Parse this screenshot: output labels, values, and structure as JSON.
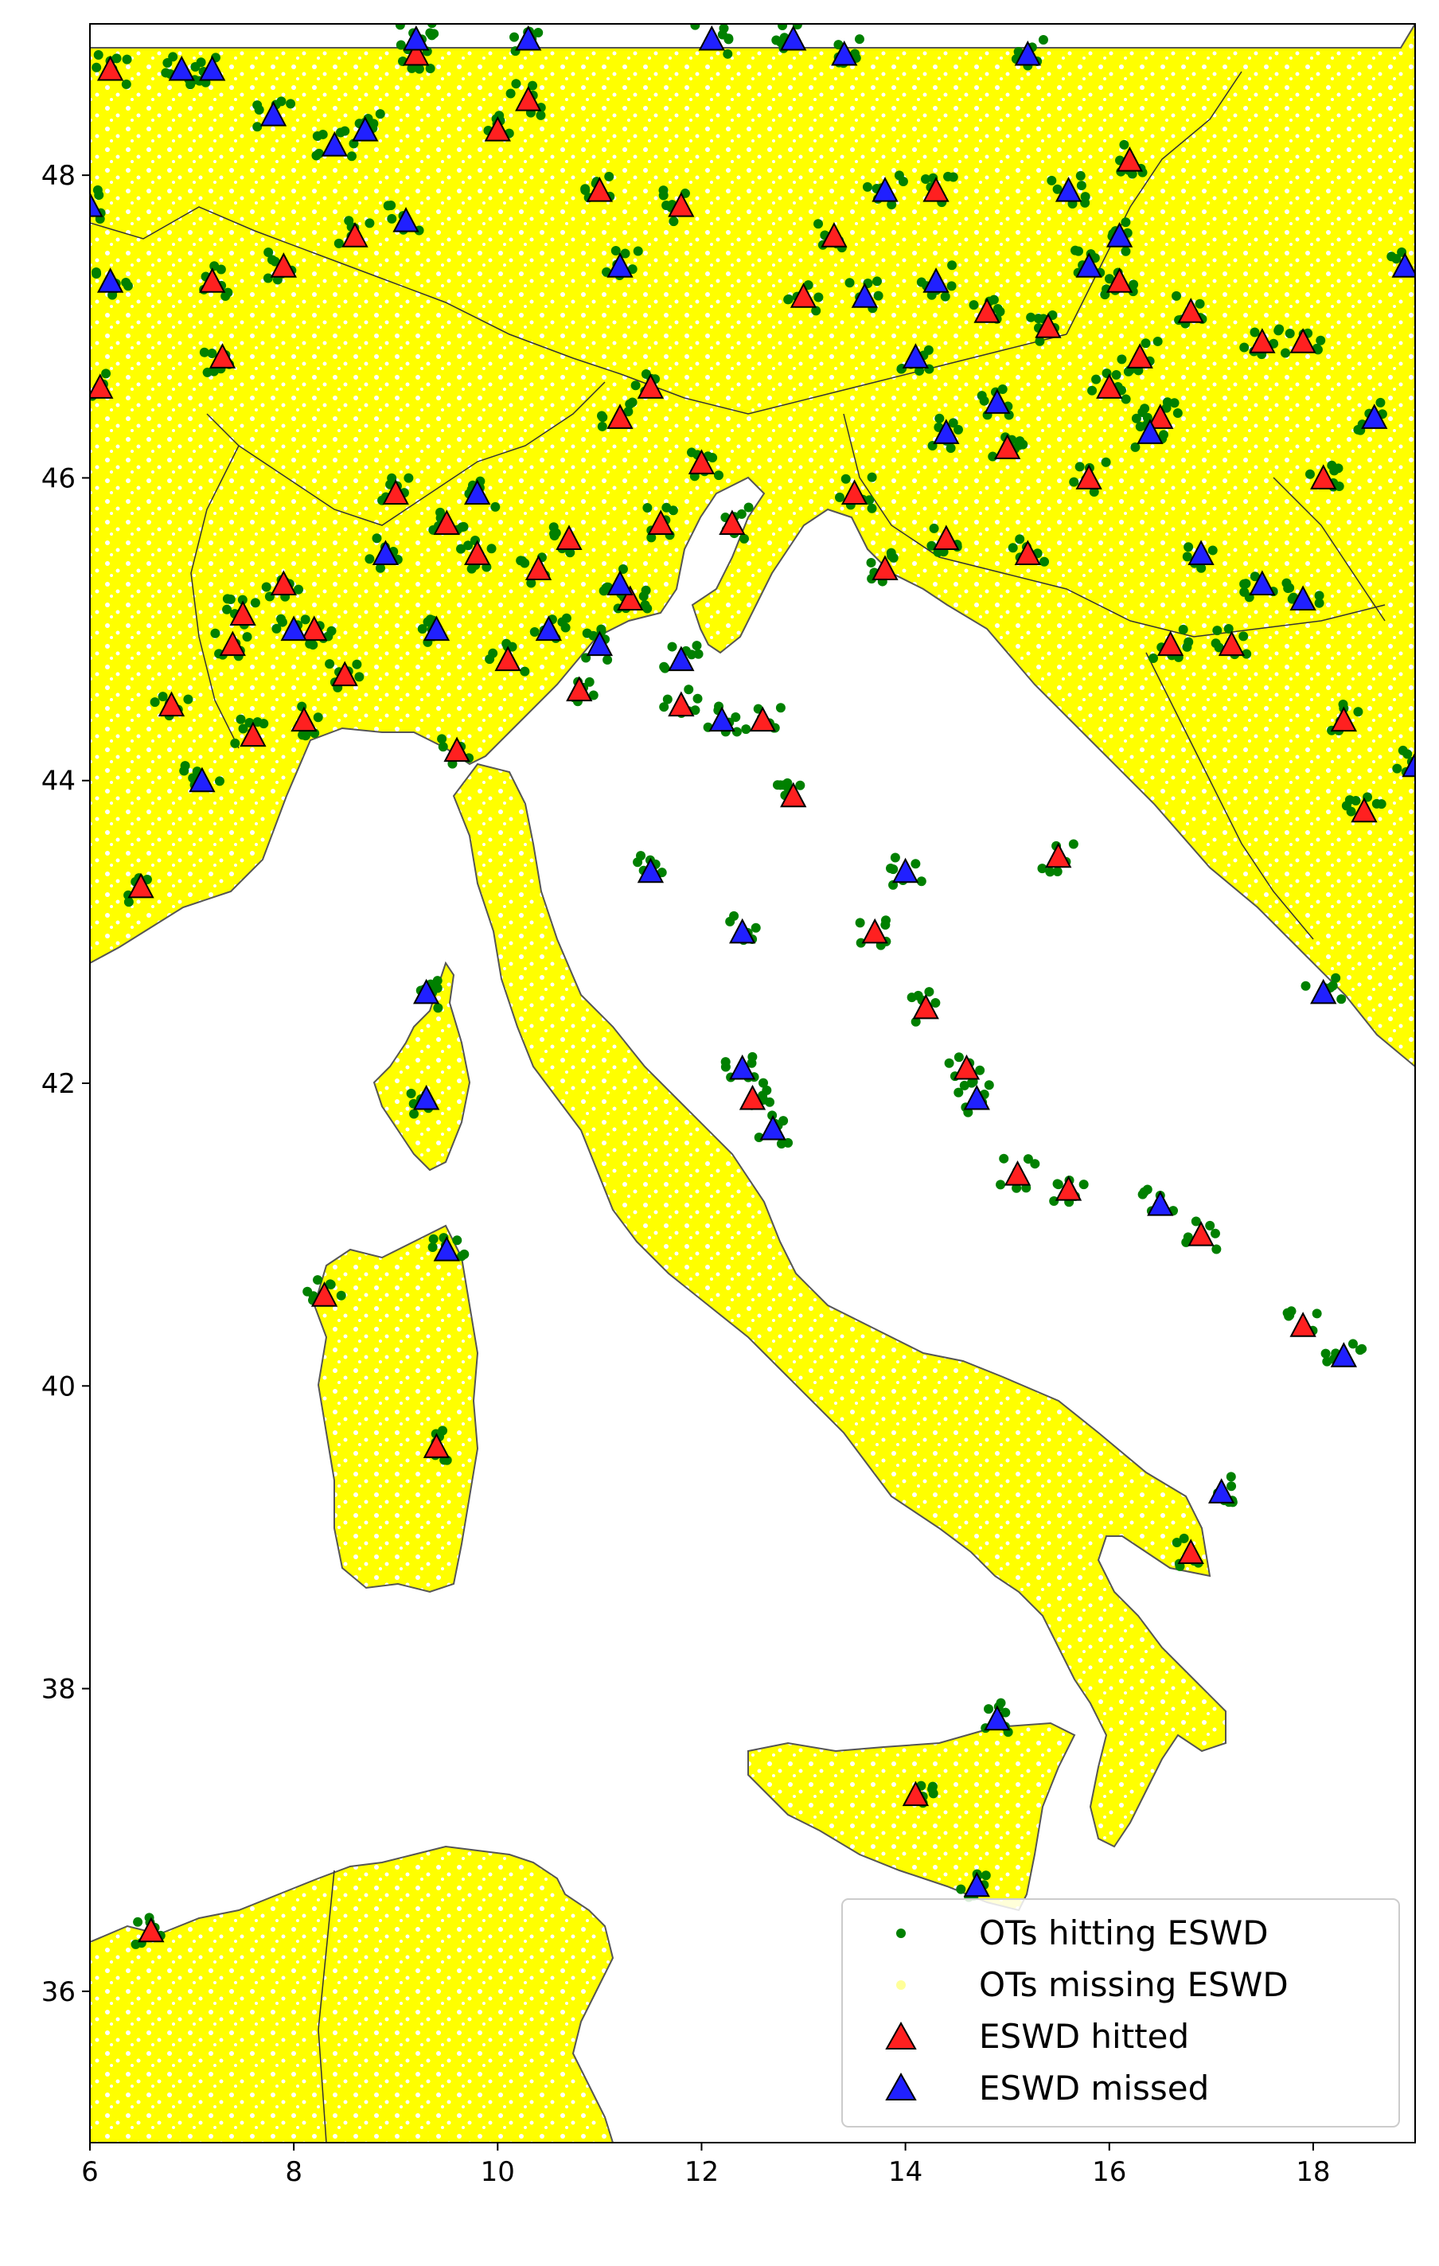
{
  "chart_data": {
    "type": "scatter",
    "title": "",
    "xlabel": "",
    "ylabel": "",
    "xlim": [
      6,
      19
    ],
    "ylim": [
      35,
      49
    ],
    "x_ticks": [
      "6",
      "8",
      "10",
      "12",
      "14",
      "16",
      "18"
    ],
    "y_ticks": [
      "36",
      "38",
      "40",
      "42",
      "44",
      "46",
      "48"
    ],
    "legend_position": "bottom-right",
    "grid": false,
    "colors": {
      "land": "#ffff00",
      "ot_hit": "#008000",
      "ot_miss": "#ffff66",
      "eswd_hit": "#ff2020",
      "eswd_miss": "#2020ff",
      "coast": "#555555"
    },
    "legend": [
      {
        "label": "OTs hitting ESWD",
        "marker": "dot",
        "color": "#008000"
      },
      {
        "label": "OTs missing ESWD",
        "marker": "dot",
        "color": "#ffff99"
      },
      {
        "label": "ESWD hitted",
        "marker": "triangle",
        "color": "#ff2020"
      },
      {
        "label": "ESWD missed",
        "marker": "triangle",
        "color": "#2020ff"
      }
    ],
    "series": [
      {
        "name": "ESWD hitted",
        "points": [
          [
            6.1,
            46.6
          ],
          [
            6.2,
            48.7
          ],
          [
            6.5,
            43.3
          ],
          [
            6.6,
            36.4
          ],
          [
            6.8,
            44.5
          ],
          [
            7.2,
            47.3
          ],
          [
            7.3,
            46.8
          ],
          [
            7.4,
            44.9
          ],
          [
            7.5,
            45.1
          ],
          [
            7.6,
            44.3
          ],
          [
            7.9,
            47.4
          ],
          [
            7.9,
            45.3
          ],
          [
            8.1,
            44.4
          ],
          [
            8.2,
            45.0
          ],
          [
            8.3,
            40.6
          ],
          [
            8.5,
            44.7
          ],
          [
            8.6,
            47.6
          ],
          [
            9.0,
            45.9
          ],
          [
            9.2,
            48.8
          ],
          [
            9.5,
            45.7
          ],
          [
            9.6,
            44.2
          ],
          [
            9.8,
            45.5
          ],
          [
            10.0,
            48.3
          ],
          [
            10.1,
            44.8
          ],
          [
            10.3,
            48.5
          ],
          [
            10.4,
            45.4
          ],
          [
            10.7,
            45.6
          ],
          [
            10.8,
            44.6
          ],
          [
            11.0,
            47.9
          ],
          [
            11.2,
            46.4
          ],
          [
            11.3,
            45.2
          ],
          [
            11.5,
            46.6
          ],
          [
            11.6,
            45.7
          ],
          [
            11.8,
            47.8
          ],
          [
            11.8,
            44.5
          ],
          [
            12.0,
            46.1
          ],
          [
            12.3,
            45.7
          ],
          [
            12.6,
            44.4
          ],
          [
            12.9,
            43.9
          ],
          [
            13.0,
            47.2
          ],
          [
            13.3,
            47.6
          ],
          [
            13.5,
            45.9
          ],
          [
            13.7,
            43.0
          ],
          [
            13.8,
            45.4
          ],
          [
            14.2,
            42.5
          ],
          [
            14.3,
            47.9
          ],
          [
            14.4,
            45.6
          ],
          [
            14.6,
            42.1
          ],
          [
            14.8,
            47.1
          ],
          [
            15.0,
            46.2
          ],
          [
            15.1,
            41.4
          ],
          [
            15.2,
            45.5
          ],
          [
            15.4,
            47.0
          ],
          [
            15.5,
            43.5
          ],
          [
            15.6,
            41.3
          ],
          [
            15.8,
            46.0
          ],
          [
            16.0,
            46.6
          ],
          [
            16.1,
            47.3
          ],
          [
            16.2,
            48.1
          ],
          [
            16.3,
            46.8
          ],
          [
            16.5,
            46.4
          ],
          [
            16.6,
            44.9
          ],
          [
            16.8,
            47.1
          ],
          [
            16.9,
            41.0
          ],
          [
            17.2,
            44.9
          ],
          [
            17.5,
            46.9
          ],
          [
            17.9,
            46.9
          ],
          [
            18.1,
            46.0
          ],
          [
            18.3,
            44.4
          ],
          [
            18.5,
            43.8
          ],
          [
            16.8,
            38.9
          ],
          [
            14.1,
            37.3
          ],
          [
            17.9,
            40.4
          ],
          [
            9.4,
            39.6
          ],
          [
            12.5,
            41.9
          ]
        ]
      },
      {
        "name": "ESWD missed",
        "points": [
          [
            6.0,
            47.8
          ],
          [
            6.2,
            47.3
          ],
          [
            6.9,
            48.7
          ],
          [
            7.2,
            48.7
          ],
          [
            7.1,
            44.0
          ],
          [
            7.8,
            48.4
          ],
          [
            8.0,
            45.0
          ],
          [
            8.4,
            48.2
          ],
          [
            8.7,
            48.3
          ],
          [
            8.9,
            45.5
          ],
          [
            9.1,
            47.7
          ],
          [
            9.2,
            48.9
          ],
          [
            9.4,
            45.0
          ],
          [
            9.3,
            42.6
          ],
          [
            9.3,
            41.9
          ],
          [
            9.5,
            40.9
          ],
          [
            9.8,
            45.9
          ],
          [
            10.3,
            48.9
          ],
          [
            10.5,
            45.0
          ],
          [
            11.0,
            44.9
          ],
          [
            11.2,
            45.3
          ],
          [
            11.2,
            47.4
          ],
          [
            11.5,
            43.4
          ],
          [
            11.8,
            44.8
          ],
          [
            12.1,
            48.9
          ],
          [
            12.2,
            44.4
          ],
          [
            12.4,
            43.0
          ],
          [
            12.4,
            42.1
          ],
          [
            12.7,
            41.7
          ],
          [
            12.9,
            48.9
          ],
          [
            13.4,
            48.8
          ],
          [
            13.6,
            47.2
          ],
          [
            13.8,
            47.9
          ],
          [
            14.1,
            46.8
          ],
          [
            14.0,
            43.4
          ],
          [
            14.3,
            47.3
          ],
          [
            14.4,
            46.3
          ],
          [
            14.7,
            41.9
          ],
          [
            14.9,
            46.5
          ],
          [
            15.2,
            48.8
          ],
          [
            15.6,
            47.9
          ],
          [
            15.8,
            47.4
          ],
          [
            16.1,
            47.6
          ],
          [
            16.4,
            46.3
          ],
          [
            16.5,
            41.2
          ],
          [
            16.9,
            45.5
          ],
          [
            17.1,
            39.3
          ],
          [
            17.5,
            45.3
          ],
          [
            17.9,
            45.2
          ],
          [
            18.3,
            40.2
          ],
          [
            18.6,
            46.4
          ],
          [
            18.9,
            47.4
          ],
          [
            19.0,
            44.1
          ],
          [
            18.1,
            42.6
          ],
          [
            14.9,
            37.8
          ],
          [
            14.7,
            36.7
          ]
        ]
      }
    ]
  }
}
